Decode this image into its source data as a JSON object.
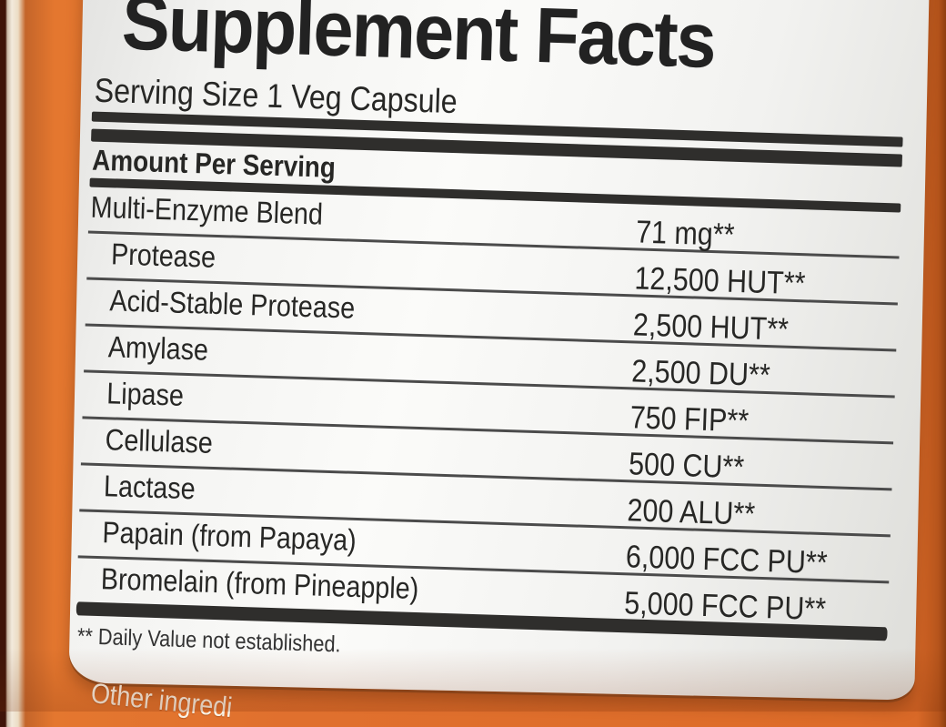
{
  "label": {
    "title": "Supplement Facts",
    "serving_size": "Serving Size 1 Veg Capsule",
    "column_header": "Amount Per Serving",
    "rows": [
      {
        "name": "Multi-Enzyme Blend",
        "amount": "71 mg**",
        "indent": false
      },
      {
        "name": "Protease",
        "amount": "12,500 HUT**",
        "indent": true
      },
      {
        "name": "Acid-Stable Protease",
        "amount": "2,500 HUT**",
        "indent": true
      },
      {
        "name": "Amylase",
        "amount": "2,500 DU**",
        "indent": true
      },
      {
        "name": "Lipase",
        "amount": "750 FIP**",
        "indent": true
      },
      {
        "name": "Cellulase",
        "amount": "500 CU**",
        "indent": true
      },
      {
        "name": "Lactase",
        "amount": "200 ALU**",
        "indent": true
      },
      {
        "name": "Papain (from Papaya)",
        "amount": "6,000 FCC PU**",
        "indent": true
      },
      {
        "name": "Bromelain (from Pineapple)",
        "amount": "5,000 FCC PU**",
        "indent": true
      }
    ],
    "footnote": "** Daily Value not established.",
    "bottom_partial_text": "Other ingredi"
  },
  "colors": {
    "bottle_orange": "#E0702E",
    "bottle_orange_dark": "#B5541B",
    "bottle_edge_dark": "#3F1409",
    "bottle_edge_highlight": "#F2EADC",
    "panel_bg": "#F2F2F0",
    "panel_bg_edge": "#DEDEDA",
    "ink": "#272725",
    "bar": "#2F2E2C",
    "rule": "#4B4B4B",
    "other_ingredients_text": "#F8F1E4"
  }
}
